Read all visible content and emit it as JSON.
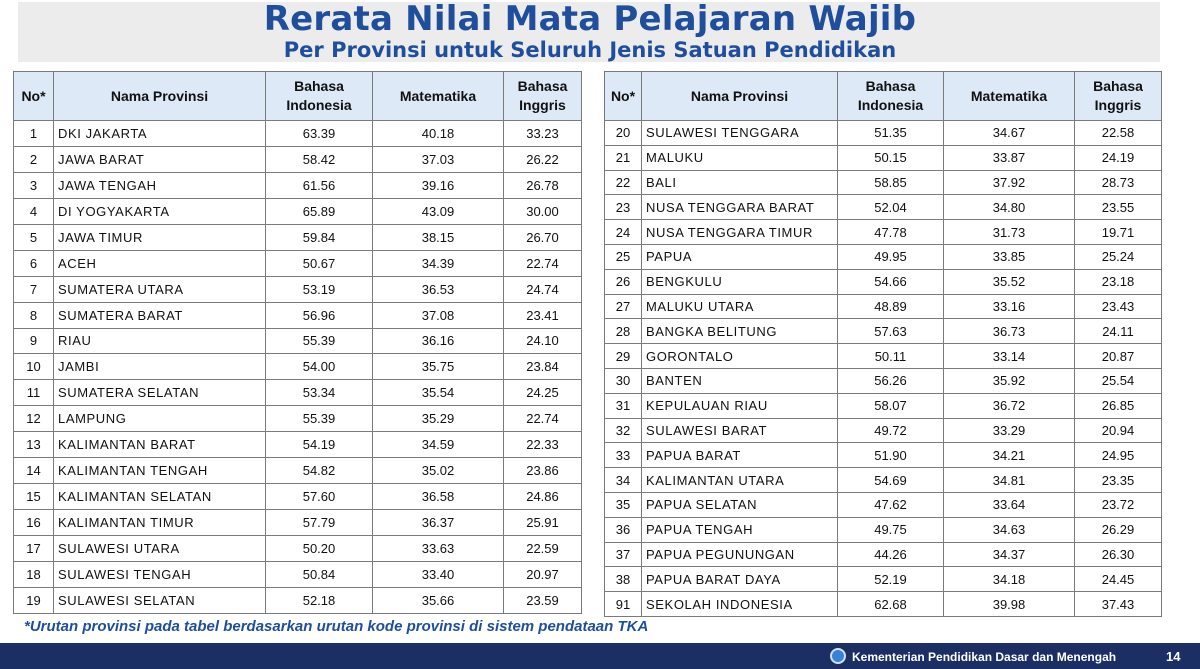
{
  "header": {
    "title": "Rerata Nilai Mata Pelajaran Wajib",
    "subtitle": "Per Provinsi untuk Seluruh Jenis Satuan Pendidikan"
  },
  "table_headers": {
    "no": "No*",
    "province": "Nama Provinsi",
    "bahasa_indonesia_1": "Bahasa",
    "bahasa_indonesia_2": "Indonesia",
    "matematika": "Matematika",
    "bahasa_inggris_1": "Bahasa",
    "bahasa_inggris_2": "Inggris"
  },
  "left_rows": [
    {
      "no": "1",
      "name": "DKI JAKARTA",
      "bi": "63.39",
      "mtk": "40.18",
      "big": "33.23"
    },
    {
      "no": "2",
      "name": "JAWA BARAT",
      "bi": "58.42",
      "mtk": "37.03",
      "big": "26.22"
    },
    {
      "no": "3",
      "name": "JAWA TENGAH",
      "bi": "61.56",
      "mtk": "39.16",
      "big": "26.78"
    },
    {
      "no": "4",
      "name": "DI YOGYAKARTA",
      "bi": "65.89",
      "mtk": "43.09",
      "big": "30.00"
    },
    {
      "no": "5",
      "name": "JAWA TIMUR",
      "bi": "59.84",
      "mtk": "38.15",
      "big": "26.70"
    },
    {
      "no": "6",
      "name": "ACEH",
      "bi": "50.67",
      "mtk": "34.39",
      "big": "22.74"
    },
    {
      "no": "7",
      "name": "SUMATERA UTARA",
      "bi": "53.19",
      "mtk": "36.53",
      "big": "24.74"
    },
    {
      "no": "8",
      "name": "SUMATERA BARAT",
      "bi": "56.96",
      "mtk": "37.08",
      "big": "23.41"
    },
    {
      "no": "9",
      "name": "RIAU",
      "bi": "55.39",
      "mtk": "36.16",
      "big": "24.10"
    },
    {
      "no": "10",
      "name": "JAMBI",
      "bi": "54.00",
      "mtk": "35.75",
      "big": "23.84"
    },
    {
      "no": "11",
      "name": "SUMATERA SELATAN",
      "bi": "53.34",
      "mtk": "35.54",
      "big": "24.25"
    },
    {
      "no": "12",
      "name": "LAMPUNG",
      "bi": "55.39",
      "mtk": "35.29",
      "big": "22.74"
    },
    {
      "no": "13",
      "name": "KALIMANTAN BARAT",
      "bi": "54.19",
      "mtk": "34.59",
      "big": "22.33"
    },
    {
      "no": "14",
      "name": "KALIMANTAN TENGAH",
      "bi": "54.82",
      "mtk": "35.02",
      "big": "23.86"
    },
    {
      "no": "15",
      "name": "KALIMANTAN SELATAN",
      "bi": "57.60",
      "mtk": "36.58",
      "big": "24.86"
    },
    {
      "no": "16",
      "name": "KALIMANTAN TIMUR",
      "bi": "57.79",
      "mtk": "36.37",
      "big": "25.91"
    },
    {
      "no": "17",
      "name": "SULAWESI UTARA",
      "bi": "50.20",
      "mtk": "33.63",
      "big": "22.59"
    },
    {
      "no": "18",
      "name": "SULAWESI TENGAH",
      "bi": "50.84",
      "mtk": "33.40",
      "big": "20.97"
    },
    {
      "no": "19",
      "name": "SULAWESI SELATAN",
      "bi": "52.18",
      "mtk": "35.66",
      "big": "23.59"
    }
  ],
  "right_rows": [
    {
      "no": "20",
      "name": "SULAWESI TENGGARA",
      "bi": "51.35",
      "mtk": "34.67",
      "big": "22.58"
    },
    {
      "no": "21",
      "name": "MALUKU",
      "bi": "50.15",
      "mtk": "33.87",
      "big": "24.19"
    },
    {
      "no": "22",
      "name": "BALI",
      "bi": "58.85",
      "mtk": "37.92",
      "big": "28.73"
    },
    {
      "no": "23",
      "name": "NUSA TENGGARA BARAT",
      "bi": "52.04",
      "mtk": "34.80",
      "big": "23.55"
    },
    {
      "no": "24",
      "name": "NUSA TENGGARA TIMUR",
      "bi": "47.78",
      "mtk": "31.73",
      "big": "19.71"
    },
    {
      "no": "25",
      "name": "PAPUA",
      "bi": "49.95",
      "mtk": "33.85",
      "big": "25.24"
    },
    {
      "no": "26",
      "name": "BENGKULU",
      "bi": "54.66",
      "mtk": "35.52",
      "big": "23.18"
    },
    {
      "no": "27",
      "name": "MALUKU UTARA",
      "bi": "48.89",
      "mtk": "33.16",
      "big": "23.43"
    },
    {
      "no": "28",
      "name": "BANGKA BELITUNG",
      "bi": "57.63",
      "mtk": "36.73",
      "big": "24.11"
    },
    {
      "no": "29",
      "name": "GORONTALO",
      "bi": "50.11",
      "mtk": "33.14",
      "big": "20.87"
    },
    {
      "no": "30",
      "name": "BANTEN",
      "bi": "56.26",
      "mtk": "35.92",
      "big": "25.54"
    },
    {
      "no": "31",
      "name": "KEPULAUAN RIAU",
      "bi": "58.07",
      "mtk": "36.72",
      "big": "26.85"
    },
    {
      "no": "32",
      "name": "SULAWESI BARAT",
      "bi": "49.72",
      "mtk": "33.29",
      "big": "20.94"
    },
    {
      "no": "33",
      "name": "PAPUA BARAT",
      "bi": "51.90",
      "mtk": "34.21",
      "big": "24.95"
    },
    {
      "no": "34",
      "name": "KALIMANTAN UTARA",
      "bi": "54.69",
      "mtk": "34.81",
      "big": "23.35"
    },
    {
      "no": "35",
      "name": "PAPUA SELATAN",
      "bi": "47.62",
      "mtk": "33.64",
      "big": "23.72"
    },
    {
      "no": "36",
      "name": "PAPUA TENGAH",
      "bi": "49.75",
      "mtk": "34.63",
      "big": "26.29"
    },
    {
      "no": "37",
      "name": "PAPUA PEGUNUNGAN",
      "bi": "44.26",
      "mtk": "34.37",
      "big": "26.30"
    },
    {
      "no": "38",
      "name": "PAPUA BARAT DAYA",
      "bi": "52.19",
      "mtk": "34.18",
      "big": "24.45"
    },
    {
      "no": "91",
      "name": "SEKOLAH INDONESIA",
      "bi": "62.68",
      "mtk": "39.98",
      "big": "37.43"
    }
  ],
  "footnote": "*Urutan provinsi pada tabel berdasarkan urutan kode provinsi di sistem pendataan TKA",
  "footer": {
    "ministry": "Kementerian Pendidikan Dasar dan Menengah",
    "page_number": "14",
    "logo_icon": "ministry-logo-icon"
  },
  "colors": {
    "title": "#1f4e9c",
    "header_fill": "#dde9f7",
    "footer_bar": "#1c2f64"
  }
}
